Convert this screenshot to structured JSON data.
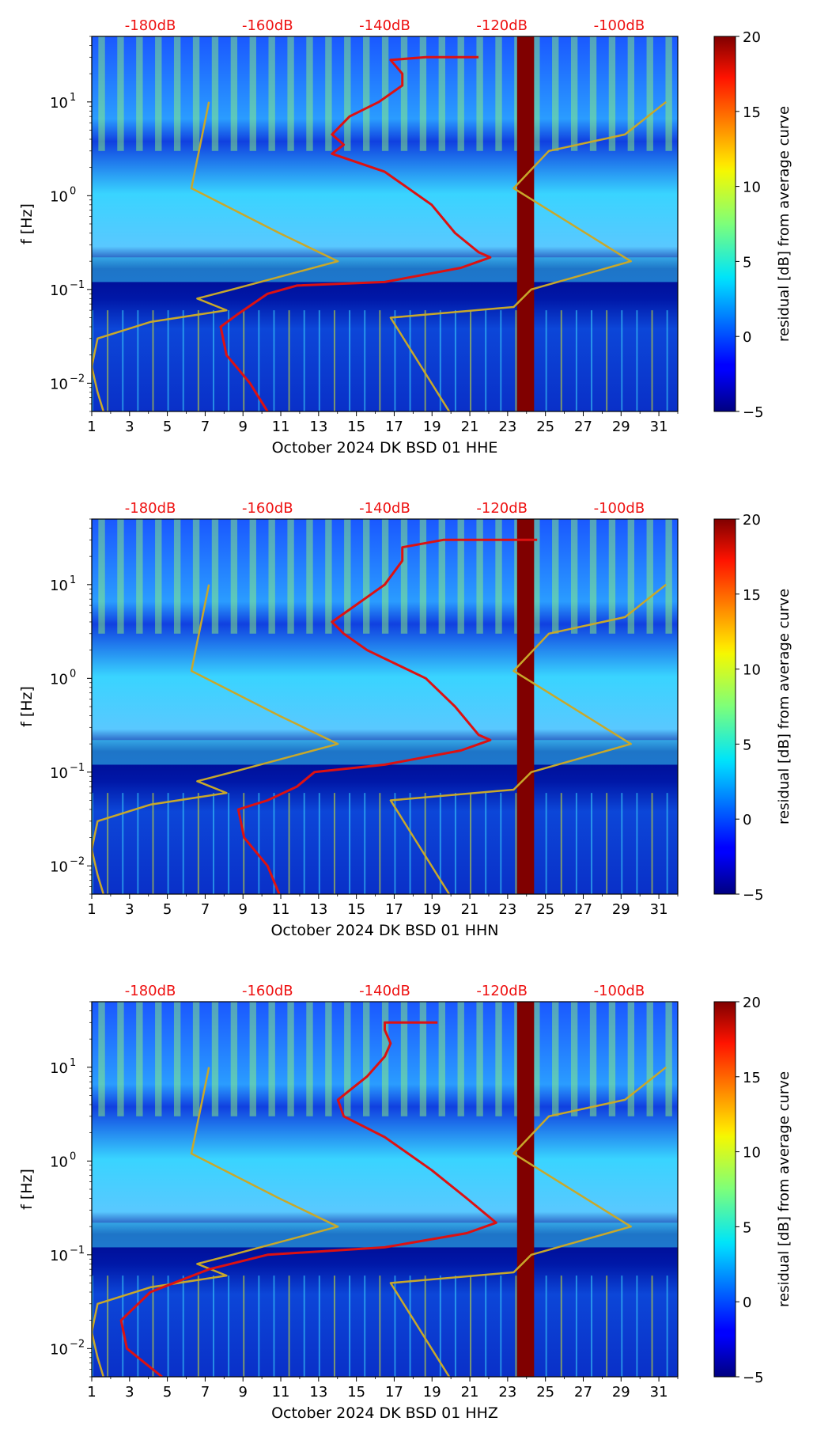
{
  "figure": {
    "type": "spectrogram-panels",
    "colorbar_label": "residual [dB] from average curve"
  },
  "chart_data": [
    {
      "type": "heatmap",
      "title": "October 2024 DK BSD 01 HHE",
      "xlabel": "October 2024 DK BSD 01 HHE",
      "ylabel": "f [Hz]",
      "x_ticks": [
        "1",
        "3",
        "5",
        "7",
        "9",
        "11",
        "13",
        "15",
        "17",
        "19",
        "21",
        "23",
        "25",
        "27",
        "29",
        "31"
      ],
      "xlim": [
        1,
        32
      ],
      "y_ticks": [
        {
          "label_base": "10",
          "label_exp": "1",
          "value": 10
        },
        {
          "label_base": "10",
          "label_exp": "0",
          "value": 1
        },
        {
          "label_base": "10",
          "label_exp": "−1",
          "value": 0.1
        },
        {
          "label_base": "10",
          "label_exp": "−2",
          "value": 0.01
        }
      ],
      "ylim": [
        0.005,
        50
      ],
      "top_axis_labels": [
        "-180dB",
        "-160dB",
        "-140dB",
        "-120dB",
        "-100dB"
      ],
      "top_axis_values": [
        -180,
        -160,
        -140,
        -120,
        -100
      ],
      "top_axis_range": [
        -190,
        -90
      ],
      "colorbar": {
        "label": "residual [dB] from average curve",
        "ticks": [
          "20",
          "15",
          "10",
          "5",
          "0",
          "−5"
        ],
        "range": [
          -5,
          20
        ]
      },
      "gap_band": {
        "x_start": 23.5,
        "x_end": 24.4,
        "value": 20
      },
      "average_curve": {
        "name": "average PSD (dB)",
        "color": "#dd1111",
        "points": [
          [
            -124,
            30
          ],
          [
            -133,
            30
          ],
          [
            -139,
            28
          ],
          [
            -137,
            20
          ],
          [
            -137,
            15
          ],
          [
            -141,
            10
          ],
          [
            -146,
            7
          ],
          [
            -149,
            4.5
          ],
          [
            -147,
            3.5
          ],
          [
            -149,
            2.8
          ],
          [
            -140,
            1.8
          ],
          [
            -132,
            0.8
          ],
          [
            -128,
            0.4
          ],
          [
            -124,
            0.25
          ],
          [
            -122,
            0.22
          ],
          [
            -127,
            0.17
          ],
          [
            -140,
            0.12
          ],
          [
            -155,
            0.11
          ],
          [
            -160,
            0.09
          ],
          [
            -165,
            0.055
          ],
          [
            -168,
            0.04
          ],
          [
            -167,
            0.02
          ],
          [
            -163,
            0.01
          ],
          [
            -160,
            0.005
          ]
        ]
      },
      "noise_model_low": {
        "name": "NLNM",
        "color": "#c8a82a",
        "points": [
          [
            -188,
            0.005
          ],
          [
            -189,
            0.008
          ],
          [
            -190,
            0.015
          ],
          [
            -189,
            0.03
          ],
          [
            -180,
            0.045
          ],
          [
            -167,
            0.06
          ],
          [
            -172,
            0.08
          ],
          [
            -166,
            0.1
          ],
          [
            -148,
            0.2
          ],
          [
            -158,
            0.4
          ],
          [
            -173,
            1.2
          ],
          [
            -170,
            10
          ]
        ]
      },
      "noise_model_high": {
        "name": "NHNM",
        "color": "#c8a82a",
        "points": [
          [
            -129,
            0.005
          ],
          [
            -139,
            0.05
          ],
          [
            -118,
            0.065
          ],
          [
            -115,
            0.1
          ],
          [
            -98,
            0.2
          ],
          [
            -118,
            1.2
          ],
          [
            -112,
            3
          ],
          [
            -99,
            4.5
          ],
          [
            -92,
            10
          ]
        ]
      }
    },
    {
      "type": "heatmap",
      "title": "October 2024 DK BSD 01 HHN",
      "xlabel": "October 2024 DK BSD 01 HHN",
      "ylabel": "f [Hz]",
      "x_ticks": [
        "1",
        "3",
        "5",
        "7",
        "9",
        "11",
        "13",
        "15",
        "17",
        "19",
        "21",
        "23",
        "25",
        "27",
        "29",
        "31"
      ],
      "xlim": [
        1,
        32
      ],
      "y_ticks": [
        {
          "label_base": "10",
          "label_exp": "1",
          "value": 10
        },
        {
          "label_base": "10",
          "label_exp": "0",
          "value": 1
        },
        {
          "label_base": "10",
          "label_exp": "−1",
          "value": 0.1
        },
        {
          "label_base": "10",
          "label_exp": "−2",
          "value": 0.01
        }
      ],
      "ylim": [
        0.005,
        50
      ],
      "top_axis_labels": [
        "-180dB",
        "-160dB",
        "-140dB",
        "-120dB",
        "-100dB"
      ],
      "top_axis_values": [
        -180,
        -160,
        -140,
        -120,
        -100
      ],
      "top_axis_range": [
        -190,
        -90
      ],
      "colorbar": {
        "label": "residual [dB] from average curve",
        "ticks": [
          "20",
          "15",
          "10",
          "5",
          "0",
          "−5"
        ],
        "range": [
          -5,
          20
        ]
      },
      "gap_band": {
        "x_start": 23.5,
        "x_end": 24.4,
        "value": 20
      },
      "average_curve": {
        "name": "average PSD (dB)",
        "color": "#dd1111",
        "points": [
          [
            -114,
            30
          ],
          [
            -130,
            30
          ],
          [
            -137,
            25
          ],
          [
            -137,
            18
          ],
          [
            -140,
            10
          ],
          [
            -145,
            6
          ],
          [
            -149,
            4
          ],
          [
            -147,
            3
          ],
          [
            -143,
            2
          ],
          [
            -133,
            1
          ],
          [
            -128,
            0.5
          ],
          [
            -124,
            0.25
          ],
          [
            -122,
            0.22
          ],
          [
            -127,
            0.17
          ],
          [
            -140,
            0.12
          ],
          [
            -152,
            0.1
          ],
          [
            -155,
            0.07
          ],
          [
            -160,
            0.05
          ],
          [
            -165,
            0.04
          ],
          [
            -164,
            0.02
          ],
          [
            -160,
            0.01
          ],
          [
            -158,
            0.005
          ]
        ]
      },
      "noise_model_low": {
        "name": "NLNM",
        "color": "#c8a82a",
        "points": [
          [
            -188,
            0.005
          ],
          [
            -189,
            0.008
          ],
          [
            -190,
            0.015
          ],
          [
            -189,
            0.03
          ],
          [
            -180,
            0.045
          ],
          [
            -167,
            0.06
          ],
          [
            -172,
            0.08
          ],
          [
            -166,
            0.1
          ],
          [
            -148,
            0.2
          ],
          [
            -158,
            0.4
          ],
          [
            -173,
            1.2
          ],
          [
            -170,
            10
          ]
        ]
      },
      "noise_model_high": {
        "name": "NHNM",
        "color": "#c8a82a",
        "points": [
          [
            -129,
            0.005
          ],
          [
            -139,
            0.05
          ],
          [
            -118,
            0.065
          ],
          [
            -115,
            0.1
          ],
          [
            -98,
            0.2
          ],
          [
            -118,
            1.2
          ],
          [
            -112,
            3
          ],
          [
            -99,
            4.5
          ],
          [
            -92,
            10
          ]
        ]
      }
    },
    {
      "type": "heatmap",
      "title": "October 2024 DK BSD 01 HHZ",
      "xlabel": "October 2024 DK BSD 01 HHZ",
      "ylabel": "f [Hz]",
      "x_ticks": [
        "1",
        "3",
        "5",
        "7",
        "9",
        "11",
        "13",
        "15",
        "17",
        "19",
        "21",
        "23",
        "25",
        "27",
        "29",
        "31"
      ],
      "xlim": [
        1,
        32
      ],
      "y_ticks": [
        {
          "label_base": "10",
          "label_exp": "1",
          "value": 10
        },
        {
          "label_base": "10",
          "label_exp": "0",
          "value": 1
        },
        {
          "label_base": "10",
          "label_exp": "−1",
          "value": 0.1
        },
        {
          "label_base": "10",
          "label_exp": "−2",
          "value": 0.01
        }
      ],
      "ylim": [
        0.005,
        50
      ],
      "top_axis_labels": [
        "-180dB",
        "-160dB",
        "-140dB",
        "-120dB",
        "-100dB"
      ],
      "top_axis_values": [
        -180,
        -160,
        -140,
        -120,
        -100
      ],
      "top_axis_range": [
        -190,
        -90
      ],
      "colorbar": {
        "label": "residual [dB] from average curve",
        "ticks": [
          "20",
          "15",
          "10",
          "5",
          "0",
          "−5"
        ],
        "range": [
          -5,
          20
        ]
      },
      "gap_band": {
        "x_start": 23.5,
        "x_end": 24.4,
        "value": 20
      },
      "average_curve": {
        "name": "average PSD (dB)",
        "color": "#dd1111",
        "points": [
          [
            -131,
            30
          ],
          [
            -140,
            30
          ],
          [
            -140,
            25
          ],
          [
            -139,
            18
          ],
          [
            -140,
            13
          ],
          [
            -143,
            8
          ],
          [
            -148,
            4.5
          ],
          [
            -147,
            3
          ],
          [
            -140,
            1.8
          ],
          [
            -132,
            0.8
          ],
          [
            -126,
            0.4
          ],
          [
            -121,
            0.22
          ],
          [
            -126,
            0.17
          ],
          [
            -140,
            0.12
          ],
          [
            -160,
            0.1
          ],
          [
            -170,
            0.07
          ],
          [
            -180,
            0.04
          ],
          [
            -185,
            0.02
          ],
          [
            -184,
            0.01
          ],
          [
            -178,
            0.005
          ]
        ]
      },
      "noise_model_low": {
        "name": "NLNM",
        "color": "#c8a82a",
        "points": [
          [
            -188,
            0.005
          ],
          [
            -189,
            0.008
          ],
          [
            -190,
            0.015
          ],
          [
            -189,
            0.03
          ],
          [
            -180,
            0.045
          ],
          [
            -167,
            0.06
          ],
          [
            -172,
            0.08
          ],
          [
            -166,
            0.1
          ],
          [
            -148,
            0.2
          ],
          [
            -158,
            0.4
          ],
          [
            -173,
            1.2
          ],
          [
            -170,
            10
          ]
        ]
      },
      "noise_model_high": {
        "name": "NHNM",
        "color": "#c8a82a",
        "points": [
          [
            -129,
            0.005
          ],
          [
            -139,
            0.05
          ],
          [
            -118,
            0.065
          ],
          [
            -115,
            0.1
          ],
          [
            -98,
            0.2
          ],
          [
            -118,
            1.2
          ],
          [
            -112,
            3
          ],
          [
            -99,
            4.5
          ],
          [
            -92,
            10
          ]
        ]
      }
    }
  ]
}
